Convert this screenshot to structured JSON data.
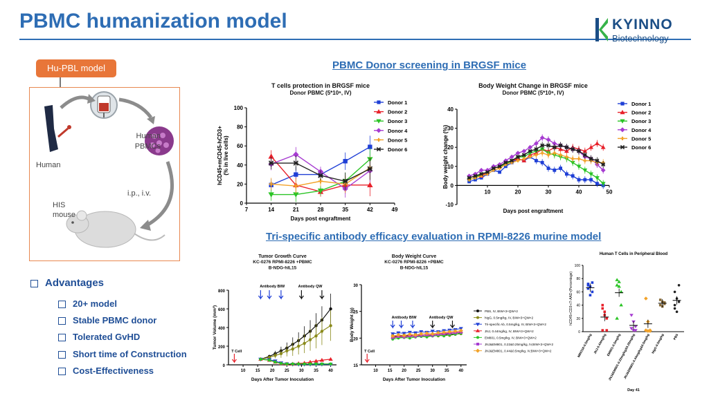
{
  "header": {
    "title": "PBMC humanization model",
    "logo_name": "KYINNO",
    "logo_sub": "Biotechnology"
  },
  "model": {
    "label": "Hu-PBL model",
    "human": "Human",
    "pbmc": "Human\nPBMCs",
    "route": "i.p., i.v.",
    "his": "HIS\nmouse"
  },
  "sections": {
    "donor": "PBMC Donor screening in BRGSF mice",
    "tri": "Tri-specific antibody efficacy evaluation in RPMI-8226 murine model"
  },
  "advantages": {
    "heading": "Advantages",
    "items": [
      "20+ model",
      "Stable PBMC donor",
      "Tolerated GvHD",
      "Short time of Construction",
      "Cost-Effectiveness"
    ]
  },
  "colors": {
    "title": "#2e6db4",
    "orange": "#e87639",
    "donors": [
      "#1f3fd6",
      "#e8202a",
      "#2ac425",
      "#a63bd1",
      "#f2a229",
      "#222222"
    ]
  },
  "chart_data": [
    {
      "type": "line",
      "title": "T cells protection in BRGSF mice",
      "subtitle": "Donor PBMC (5*10⁶, IV)",
      "xlabel": "Days post engraftment",
      "ylabel": "hCD45+mCD45-hCD3+ (% in live cells)",
      "xlim": [
        7,
        49
      ],
      "ylim": [
        0,
        100
      ],
      "xticks": [
        7,
        14,
        21,
        28,
        35,
        42,
        49
      ],
      "yticks": [
        0,
        20,
        40,
        60,
        80,
        100
      ],
      "x": [
        14,
        21,
        28,
        35,
        42
      ],
      "series": [
        {
          "name": "Donor 1",
          "values": [
            19,
            30,
            30,
            44,
            59
          ]
        },
        {
          "name": "Donor 2",
          "values": [
            49,
            19,
            12,
            19,
            19
          ]
        },
        {
          "name": "Donor 3",
          "values": [
            9,
            9,
            13,
            23,
            46
          ]
        },
        {
          "name": "Donor 4",
          "values": [
            41,
            51,
            33,
            15,
            34
          ]
        },
        {
          "name": "Donor 5",
          "values": [
            20,
            18,
            23,
            20,
            37
          ]
        },
        {
          "name": "Donor 6",
          "values": [
            42,
            42,
            29,
            23,
            36
          ]
        }
      ]
    },
    {
      "type": "line",
      "title": "Body Weight Change in BRGSF mice",
      "subtitle": "Donor PBMC (5*10⁶, IV)",
      "xlabel": "Days post engraftment",
      "ylabel": "Body weight change (%)",
      "xlim": [
        0,
        50
      ],
      "ylim": [
        -10,
        40
      ],
      "xticks": [
        10,
        20,
        30,
        40,
        50
      ],
      "yticks": [
        -10,
        0,
        10,
        20,
        30,
        40
      ],
      "x": [
        4,
        6,
        8,
        10,
        12,
        14,
        16,
        18,
        20,
        22,
        24,
        26,
        28,
        30,
        32,
        34,
        36,
        38,
        40,
        42,
        44,
        46,
        48
      ],
      "series": [
        {
          "name": "Donor 1",
          "values": [
            2,
            3,
            4,
            6,
            8,
            7,
            10,
            12,
            14,
            13,
            15,
            13,
            12,
            9,
            8,
            9,
            6,
            5,
            3,
            3,
            3,
            1,
            0
          ]
        },
        {
          "name": "Donor 2",
          "values": [
            4,
            5,
            5,
            7,
            9,
            10,
            12,
            13,
            14,
            13,
            16,
            17,
            19,
            18,
            20,
            19,
            18,
            20,
            19,
            18,
            20,
            22,
            20
          ]
        },
        {
          "name": "Donor 3",
          "values": [
            3,
            4,
            6,
            7,
            9,
            10,
            11,
            13,
            15,
            15,
            17,
            18,
            19,
            17,
            16,
            15,
            14,
            12,
            10,
            8,
            6,
            4,
            1
          ]
        },
        {
          "name": "Donor 4",
          "values": [
            5,
            6,
            8,
            8,
            10,
            11,
            13,
            15,
            17,
            18,
            20,
            22,
            25,
            24,
            22,
            21,
            20,
            19,
            18,
            15,
            14,
            11,
            8
          ]
        },
        {
          "name": "Donor 5",
          "values": [
            3,
            4,
            5,
            6,
            8,
            9,
            11,
            12,
            13,
            14,
            15,
            16,
            17,
            16,
            17,
            16,
            15,
            14,
            14,
            13,
            13,
            12,
            12
          ]
        },
        {
          "name": "Donor 6",
          "values": [
            4,
            5,
            6,
            7,
            9,
            10,
            12,
            13,
            15,
            16,
            18,
            19,
            21,
            21,
            20,
            21,
            20,
            19,
            18,
            16,
            14,
            13,
            11
          ]
        }
      ]
    },
    {
      "type": "line",
      "title": "Tumor Growth Curve",
      "subtitle": "KC-0276 RPMI-8226 +PBMC\nB-NDG-hIL15",
      "xlabel": "Days After Tumor Inoculation",
      "ylabel": "Tumor Volume (mm³)",
      "xlim": [
        5,
        42
      ],
      "ylim": [
        0,
        800
      ],
      "xticks": [
        10,
        15,
        20,
        25,
        30,
        35,
        40
      ],
      "yticks": [
        0,
        200,
        400,
        600,
        800
      ],
      "annotations": [
        "T Cell",
        "Antibody BIW",
        "Antibody QW"
      ],
      "x": [
        16,
        19,
        21,
        23,
        25,
        27,
        29,
        31,
        33,
        35,
        37,
        40
      ],
      "series": [
        {
          "values": [
            60,
            90,
            120,
            150,
            180,
            220,
            260,
            310,
            360,
            420,
            480,
            600
          ]
        },
        {
          "values": [
            60,
            80,
            100,
            120,
            150,
            170,
            200,
            230,
            270,
            310,
            360,
            420
          ]
        },
        {
          "values": [
            60,
            55,
            40,
            20,
            10,
            5,
            5,
            5,
            5,
            5,
            5,
            5
          ]
        },
        {
          "values": [
            60,
            50,
            30,
            15,
            10,
            10,
            15,
            20,
            30,
            40,
            50,
            60
          ]
        },
        {
          "values": [
            60,
            50,
            30,
            15,
            10,
            10,
            10,
            10,
            10,
            10,
            10,
            10
          ]
        }
      ]
    },
    {
      "type": "line",
      "title": "Body Weight Curve",
      "subtitle": "KC-0276 RPMI-8226 +PBMC\nB-NDG-hIL15",
      "xlabel": "Days After Tumor Inoculation",
      "ylabel": "Body Weight (g)",
      "xlim": [
        5,
        42
      ],
      "ylim": [
        15,
        30
      ],
      "xticks": [
        10,
        15,
        20,
        25,
        30,
        35,
        40
      ],
      "yticks": [
        15,
        20,
        25,
        30
      ],
      "annotations": [
        "T Cell",
        "Antibody BIW",
        "Antibody QW"
      ],
      "legend": [
        "PBS, IV, BIW×3+QW×2",
        "hIgG, 0.5mg/kg, IV, BIW×3+QW×2",
        "Tri-specific Ab, 0.5mg/kg, IV, BIW×3+QW×2",
        "JNJ, 0.44mg/kg, IV, BIW×3+QW×2",
        "EM801, 0.5mg/kg, IV, BIW×3+QW×2",
        "JNJ&EM801, 0.22&0.25mg/kg, IV,BIW×3+QW×2",
        "JNJ&EM801, 0.44&0.5mg/kg, IV,BIW×3+QW×2"
      ],
      "x": [
        16,
        18,
        20,
        22,
        24,
        26,
        28,
        30,
        32,
        34,
        36,
        38,
        40
      ],
      "series": [
        {
          "values": [
            20.5,
            20.3,
            20.6,
            20.4,
            20.7,
            20.5,
            20.6,
            20.4,
            20.5,
            20.6,
            20.8,
            20.7,
            21.0
          ]
        },
        {
          "values": [
            20.0,
            20.2,
            20.1,
            20.3,
            20.2,
            20.4,
            20.3,
            20.5,
            20.4,
            20.6,
            20.5,
            20.7,
            20.8
          ]
        },
        {
          "values": [
            20.8,
            21.0,
            20.9,
            21.1,
            21.0,
            21.2,
            21.1,
            21.3,
            21.2,
            21.4,
            21.5,
            21.6,
            21.8
          ]
        },
        {
          "values": [
            20.2,
            20.4,
            20.3,
            20.5,
            20.6,
            20.5,
            20.7,
            20.6,
            20.8,
            20.9,
            21.0,
            21.1,
            21.2
          ]
        },
        {
          "values": [
            19.8,
            20.0,
            20.1,
            20.0,
            20.2,
            20.3,
            20.2,
            20.4,
            20.5,
            20.4,
            20.6,
            20.7,
            20.9
          ]
        },
        {
          "values": [
            20.1,
            20.3,
            20.2,
            20.4,
            20.3,
            20.5,
            20.6,
            20.5,
            20.7,
            20.8,
            20.9,
            21.0,
            21.1
          ]
        },
        {
          "values": [
            20.4,
            20.6,
            20.5,
            20.7,
            20.6,
            20.8,
            20.9,
            20.8,
            21.0,
            21.1,
            21.2,
            21.3,
            21.4
          ]
        }
      ]
    },
    {
      "type": "scatter",
      "title": "Human T Cells in Peripheral Blood",
      "xlabel": "Day 41",
      "ylabel": "hCD45+CD3+/7-AAD-(Percentage)",
      "ylim": [
        0,
        100
      ],
      "yticks": [
        0,
        20,
        40,
        60,
        80,
        100
      ],
      "categories": [
        "M80316-0.5mg/kg",
        "JNJ-0.44mg/kg",
        "EM801-0.5mg/kg",
        "JNJ&EM801-0.22mg/kg&0.25mg/kg",
        "JNJ&EM801-0.44mg/kg&0.5mg/kg",
        "hIgG-0.5mg/kg",
        "PBS"
      ],
      "colors": [
        "#1f3fd6",
        "#e8202a",
        "#2ac425",
        "#a63bd1",
        "#f2a229",
        "#8a6d3b",
        "#222222"
      ],
      "series": [
        {
          "name": "M80316-0.5mg/kg",
          "values": [
            72,
            68,
            60,
            65,
            55,
            74,
            70
          ]
        },
        {
          "name": "JNJ-0.44mg/kg",
          "values": [
            40,
            30,
            20,
            35,
            25,
            2,
            2
          ]
        },
        {
          "name": "EM801-0.5mg/kg",
          "values": [
            78,
            68,
            60,
            70,
            75,
            40,
            20
          ]
        },
        {
          "name": "JNJ&EM801-0.22mg/kg&0.25mg/kg",
          "values": [
            25,
            15,
            8,
            5,
            2,
            2
          ]
        },
        {
          "name": "JNJ&EM801-0.44mg/kg&0.5mg/kg",
          "values": [
            50,
            15,
            2,
            2,
            1,
            1
          ]
        },
        {
          "name": "hIgG-0.5mg/kg",
          "values": [
            48,
            45,
            42,
            40,
            38,
            44
          ]
        },
        {
          "name": "PBS",
          "values": [
            60,
            50,
            45,
            40,
            30,
            70,
            35
          ]
        }
      ]
    }
  ]
}
